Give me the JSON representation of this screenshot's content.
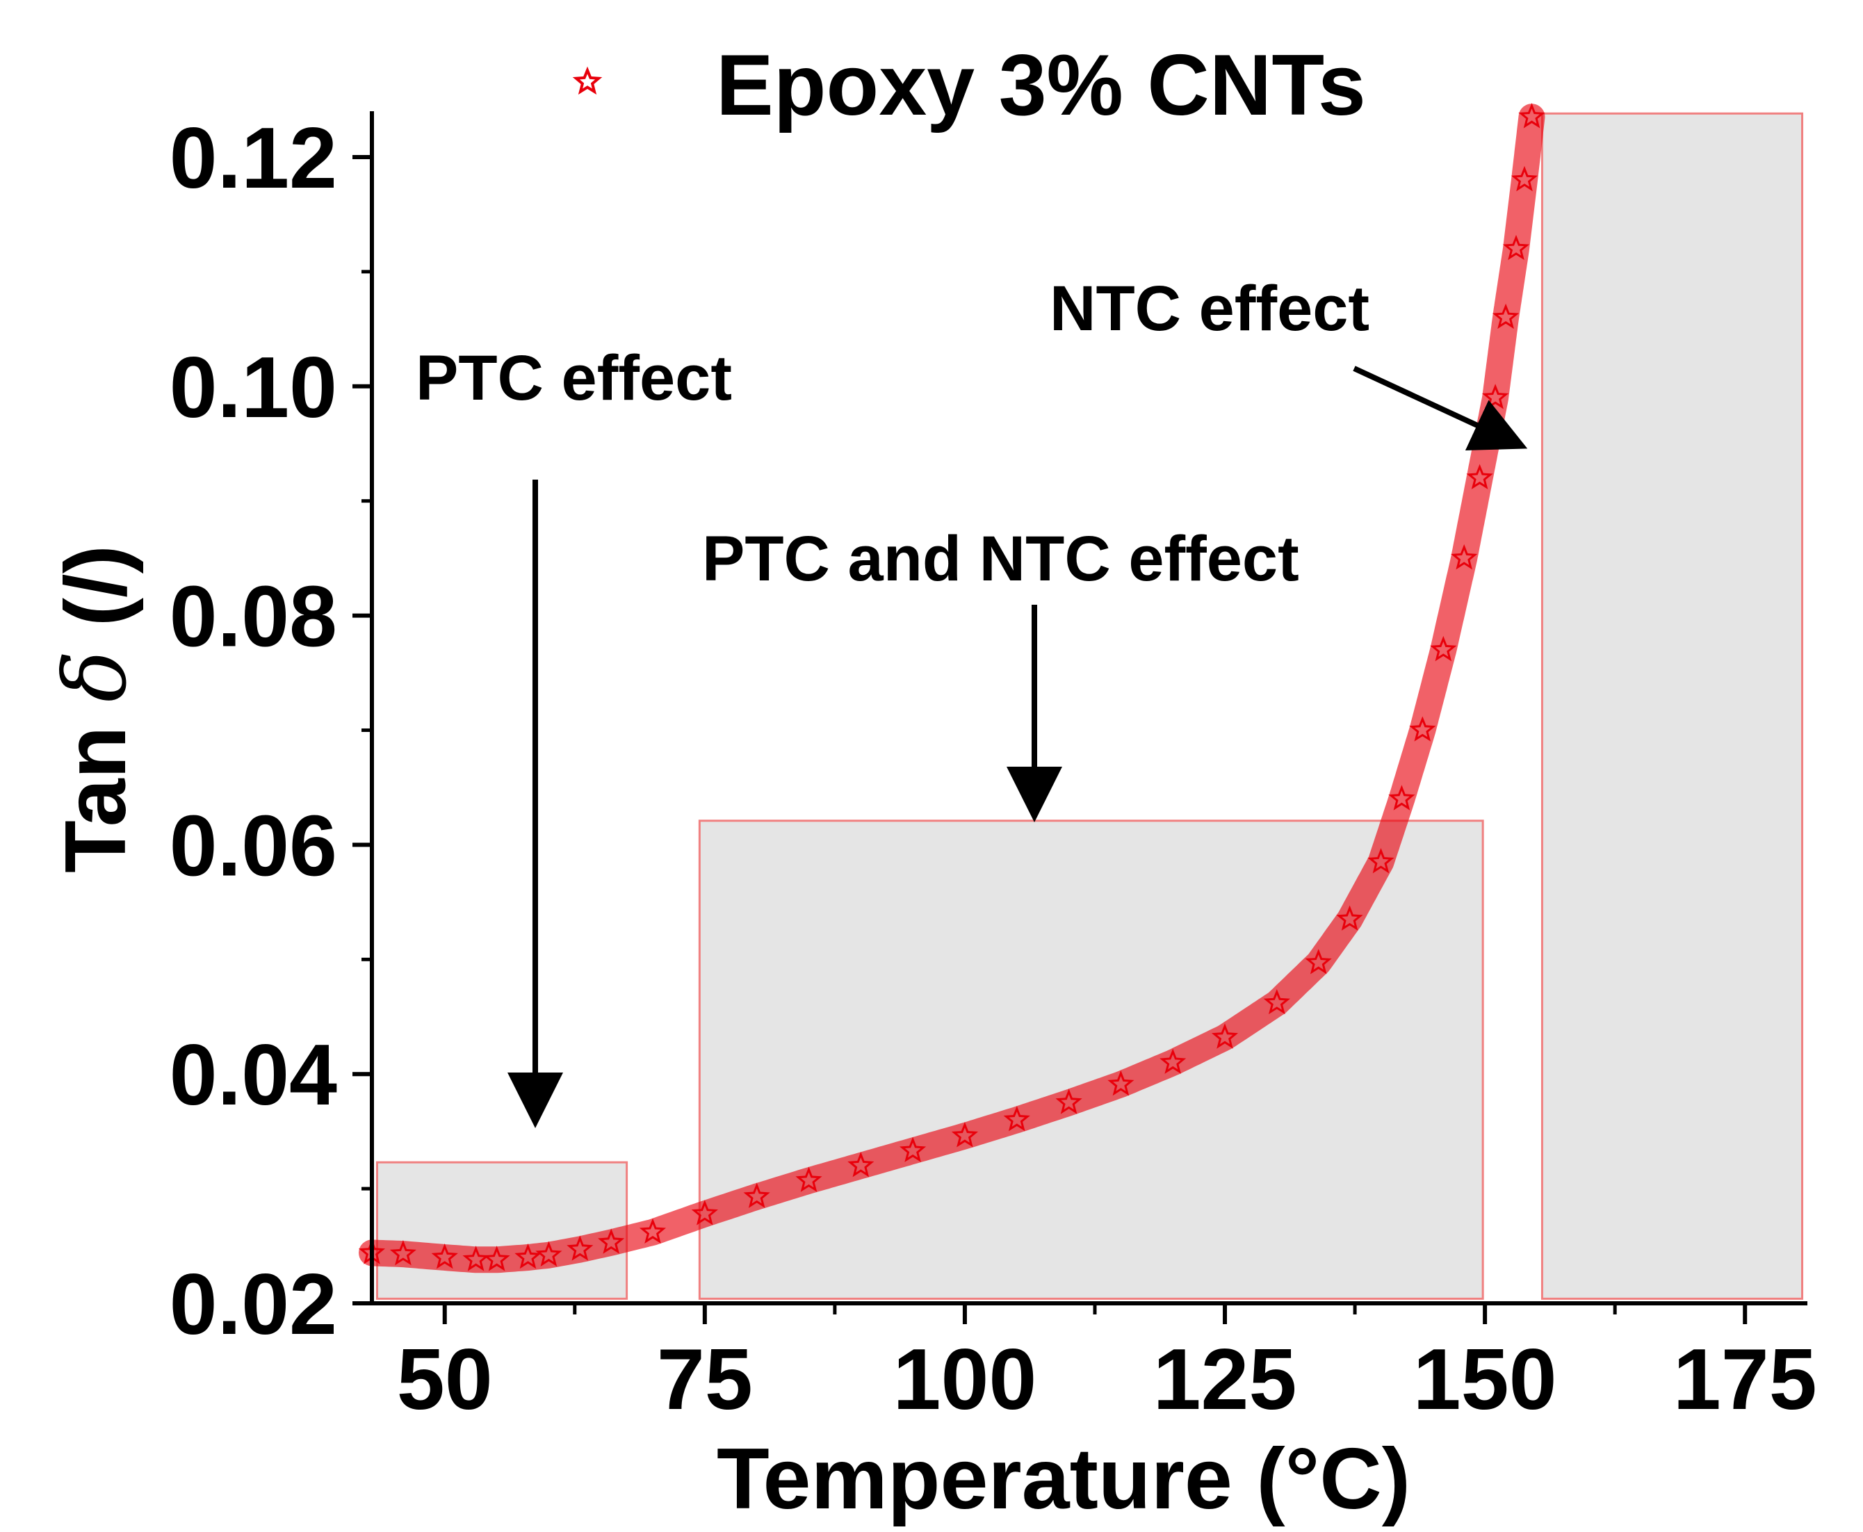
{
  "chart_data": {
    "type": "scatter",
    "title": "",
    "xlabel": "Temperature (°C)",
    "ylabel_main": "Tan ",
    "ylabel_symbol": "δ",
    "ylabel_unit": " (/)",
    "xlim": [
      43,
      181
    ],
    "ylim": [
      0.02,
      0.124
    ],
    "x_ticks": [
      50,
      75,
      100,
      125,
      150,
      175
    ],
    "y_ticks": [
      0.02,
      0.04,
      0.06,
      0.08,
      0.1,
      0.12
    ],
    "y_tick_labels": [
      "0.02",
      "0.04",
      "0.06",
      "0.08",
      "0.10",
      "0.12"
    ],
    "legend": {
      "label": "Epoxy 3% CNTs",
      "marker": "star",
      "position": "top-center"
    },
    "series": [
      {
        "name": "Epoxy 3% CNTs",
        "color": "#e8000b",
        "marker": "star",
        "points": [
          [
            43,
            0.0244
          ],
          [
            46,
            0.0243
          ],
          [
            50,
            0.024
          ],
          [
            53,
            0.0238
          ],
          [
            55,
            0.0238
          ],
          [
            58,
            0.024
          ],
          [
            60,
            0.0242
          ],
          [
            63,
            0.0247
          ],
          [
            66,
            0.0253
          ],
          [
            70,
            0.0262
          ],
          [
            75,
            0.0278
          ],
          [
            80,
            0.0293
          ],
          [
            85,
            0.0307
          ],
          [
            90,
            0.032
          ],
          [
            95,
            0.0333
          ],
          [
            100,
            0.0346
          ],
          [
            105,
            0.036
          ],
          [
            110,
            0.0375
          ],
          [
            115,
            0.0391
          ],
          [
            120,
            0.041
          ],
          [
            125,
            0.0432
          ],
          [
            130,
            0.0462
          ],
          [
            134,
            0.0497
          ],
          [
            137,
            0.0535
          ],
          [
            140,
            0.0585
          ],
          [
            142,
            0.064
          ],
          [
            144,
            0.07
          ],
          [
            146,
            0.077
          ],
          [
            148,
            0.085
          ],
          [
            149.5,
            0.092
          ],
          [
            151,
            0.099
          ],
          [
            152,
            0.106
          ],
          [
            153,
            0.112
          ],
          [
            153.8,
            0.118
          ],
          [
            154.5,
            0.1235
          ]
        ]
      }
    ],
    "regions": [
      {
        "x0": 43.5,
        "x1": 67.5,
        "y0": 0.0204,
        "y1": 0.0323,
        "label": "PTC effect"
      },
      {
        "x0": 74.5,
        "x1": 149.8,
        "y0": 0.0204,
        "y1": 0.0621,
        "label": "PTC and NTC effect"
      },
      {
        "x0": 155.5,
        "x1": 180.5,
        "y0": 0.0204,
        "y1": 0.1238,
        "label": "NTC effect"
      }
    ],
    "annotations": [
      {
        "text": "PTC effect"
      },
      {
        "text": "PTC and NTC effect"
      },
      {
        "text": "NTC effect"
      }
    ]
  }
}
